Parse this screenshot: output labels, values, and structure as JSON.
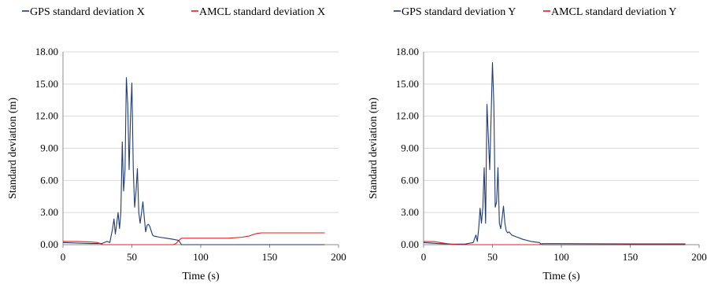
{
  "chart_data": [
    {
      "type": "line",
      "title": "",
      "xlabel": "Time (s)",
      "ylabel": "Standard deviation (m)",
      "xlim": [
        0,
        200
      ],
      "ylim": [
        0,
        18
      ],
      "x_ticks": [
        "0",
        "50",
        "100",
        "150",
        "200"
      ],
      "y_ticks": [
        "0.00",
        "3.00",
        "6.00",
        "9.00",
        "12.00",
        "15.00",
        "18.00"
      ],
      "legend_position": "top",
      "grid": "horizontal",
      "series": [
        {
          "name": "GPS standard deviation X",
          "color": "#1f3a73",
          "x": [
            0,
            10,
            20,
            28,
            32,
            34,
            36,
            37,
            38,
            39,
            40,
            41,
            42,
            43,
            44,
            45,
            46,
            47,
            48,
            49,
            50,
            51,
            52,
            53,
            54,
            55,
            56,
            57,
            58,
            59,
            60,
            61,
            62,
            63,
            64,
            65,
            66,
            70,
            75,
            80,
            84,
            86,
            100,
            150,
            190
          ],
          "y": [
            0.2,
            0.15,
            0.1,
            0.1,
            0.3,
            0.2,
            1.5,
            2.4,
            1.0,
            2.0,
            3.0,
            1.5,
            3.0,
            9.6,
            5.0,
            7.0,
            15.6,
            13.0,
            7.0,
            12.0,
            15.1,
            7.0,
            3.5,
            5.0,
            7.1,
            3.0,
            2.0,
            3.0,
            4.0,
            2.5,
            1.2,
            1.8,
            1.9,
            1.7,
            1.3,
            0.9,
            0.8,
            0.7,
            0.6,
            0.5,
            0.4,
            0.0,
            0.0,
            0.0,
            0.0
          ]
        },
        {
          "name": "AMCL standard deviation X",
          "color": "#e02020",
          "x": [
            0,
            10,
            20,
            25,
            27,
            29,
            80,
            82,
            84,
            86,
            120,
            130,
            135,
            138,
            141,
            144,
            150,
            190
          ],
          "y": [
            0.3,
            0.3,
            0.25,
            0.2,
            0.1,
            0.0,
            0.0,
            0.1,
            0.4,
            0.6,
            0.6,
            0.7,
            0.8,
            0.95,
            1.05,
            1.1,
            1.1,
            1.1
          ]
        }
      ]
    },
    {
      "type": "line",
      "title": "",
      "xlabel": "Time (s)",
      "ylabel": "Standard deviation (m)",
      "xlim": [
        0,
        200
      ],
      "ylim": [
        0,
        18
      ],
      "x_ticks": [
        "0",
        "50",
        "100",
        "150",
        "200"
      ],
      "y_ticks": [
        "0.00",
        "3.00",
        "6.00",
        "9.00",
        "12.00",
        "15.00",
        "18.00"
      ],
      "legend_position": "top",
      "grid": "horizontal",
      "series": [
        {
          "name": "GPS standard deviation Y",
          "color": "#1f3a73",
          "x": [
            0,
            10,
            20,
            30,
            36,
            38,
            39,
            40,
            41,
            42,
            43,
            44,
            45,
            46,
            47,
            48,
            49,
            50,
            51,
            52,
            53,
            54,
            55,
            56,
            57,
            58,
            59,
            60,
            61,
            62,
            64,
            68,
            72,
            78,
            84,
            86,
            100,
            150,
            190
          ],
          "y": [
            0.2,
            0.1,
            0.05,
            0.05,
            0.2,
            0.9,
            0.3,
            1.5,
            3.4,
            2.0,
            3.5,
            7.2,
            2.0,
            13.1,
            10.0,
            7.0,
            12.0,
            17.0,
            13.0,
            3.5,
            4.0,
            7.2,
            2.0,
            1.5,
            2.5,
            3.6,
            2.0,
            1.3,
            1.1,
            1.2,
            0.9,
            0.7,
            0.5,
            0.3,
            0.2,
            0.0,
            0.0,
            0.0,
            0.0
          ]
        },
        {
          "name": "AMCL standard deviation Y",
          "color": "#e02020",
          "x": [
            0,
            8,
            12,
            16,
            20,
            25,
            30,
            60,
            84,
            86,
            100,
            150,
            190
          ],
          "y": [
            0.3,
            0.28,
            0.2,
            0.12,
            0.05,
            0.0,
            0.0,
            0.0,
            0.0,
            0.1,
            0.1,
            0.08,
            0.08
          ]
        }
      ]
    }
  ]
}
